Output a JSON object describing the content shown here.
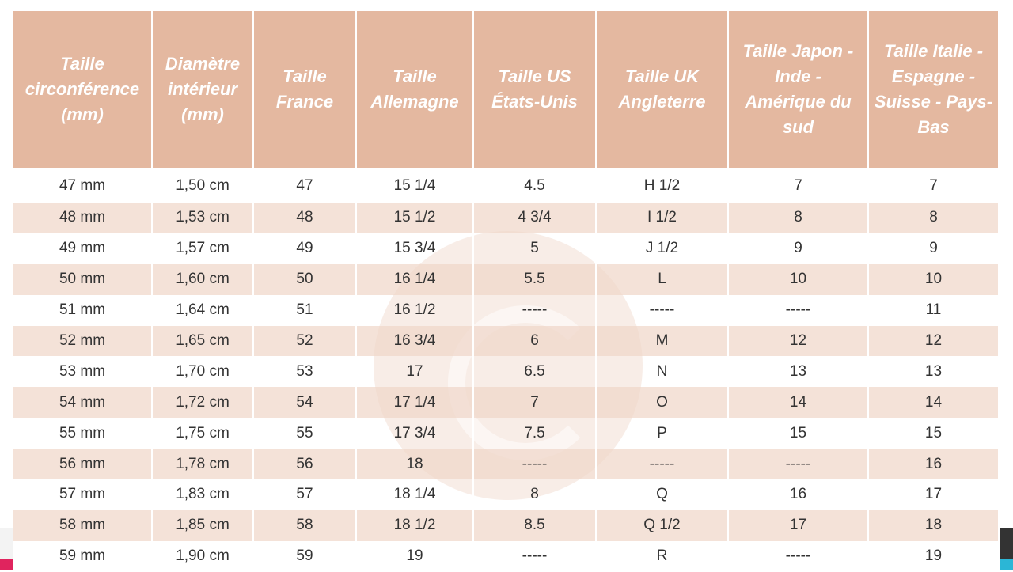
{
  "table": {
    "header": [
      "Taille circonférence (mm)",
      "Diamètre intérieur (mm)",
      "Taille France",
      "Taille Allemagne",
      "Taille US États-Unis",
      "Taille UK Angleterre",
      "Taille Japon - Inde - Amérique du sud",
      "Taille Italie - Espagne - Suisse - Pays-Bas"
    ],
    "rows": [
      [
        "47 mm",
        "1,50 cm",
        "47",
        "15 1/4",
        "4.5",
        "H 1/2",
        "7",
        "7"
      ],
      [
        "48 mm",
        "1,53 cm",
        "48",
        "15 1/2",
        "4 3/4",
        "I 1/2",
        "8",
        "8"
      ],
      [
        "49 mm",
        "1,57 cm",
        "49",
        "15 3/4",
        "5",
        "J 1/2",
        "9",
        "9"
      ],
      [
        "50 mm",
        "1,60 cm",
        "50",
        "16 1/4",
        "5.5",
        "L",
        "10",
        "10"
      ],
      [
        "51 mm",
        "1,64 cm",
        "51",
        "16 1/2",
        "-----",
        "-----",
        "-----",
        "11"
      ],
      [
        "52 mm",
        "1,65 cm",
        "52",
        "16 3/4",
        "6",
        "M",
        "12",
        "12"
      ],
      [
        "53 mm",
        "1,70 cm",
        "53",
        "17",
        "6.5",
        "N",
        "13",
        "13"
      ],
      [
        "54 mm",
        "1,72 cm",
        "54",
        "17 1/4",
        "7",
        "O",
        "14",
        "14"
      ],
      [
        "55 mm",
        "1,75 cm",
        "55",
        "17 3/4",
        "7.5",
        "P",
        "15",
        "15"
      ],
      [
        "56 mm",
        "1,78 cm",
        "56",
        "18",
        "-----",
        "-----",
        "-----",
        "16"
      ],
      [
        "57 mm",
        "1,83 cm",
        "57",
        "18 1/4",
        "8",
        "Q",
        "16",
        "17"
      ],
      [
        "58 mm",
        "1,85 cm",
        "58",
        "18 1/2",
        "8.5",
        "Q 1/2",
        "17",
        "18"
      ],
      [
        "59 mm",
        "1,90 cm",
        "59",
        "19",
        "-----",
        "R",
        "-----",
        "19"
      ]
    ]
  }
}
